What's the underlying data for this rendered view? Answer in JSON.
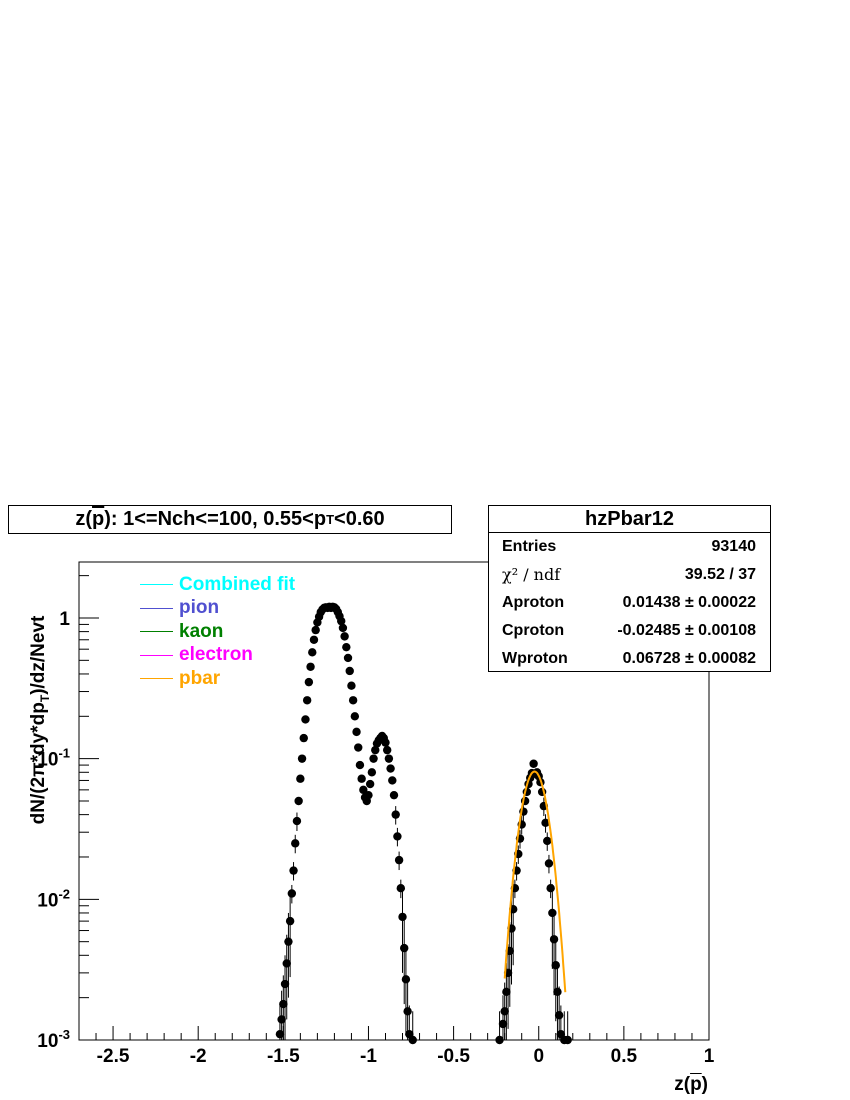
{
  "title": {
    "prefix": "z(",
    "pbar": "p",
    "suffix": "): 1<=Nch<=100, 0.55<p",
    "sub": "T",
    "tail": "<0.60"
  },
  "stats": {
    "name": "hzPbar12",
    "rows": [
      {
        "label": "Entries",
        "value": "93140"
      },
      {
        "label": "χ² / ndf",
        "value": "39.52 / 37"
      },
      {
        "label": "Aproton",
        "value": "0.01438 ± 0.00022"
      },
      {
        "label": "Cproton",
        "value": "-0.02485 ± 0.00108"
      },
      {
        "label": "Wproton",
        "value": "0.06728 ± 0.00082"
      }
    ]
  },
  "axes": {
    "ylabel_a": "dN/(2π*dy*dp",
    "ylabel_sub": "T",
    "ylabel_b": ")/dz/Nevt",
    "xlabel_a": "z(",
    "xlabel_pbar": "p",
    "xlabel_b": ")"
  },
  "legend": [
    {
      "label": "Combined fit",
      "color": "#00ffff"
    },
    {
      "label": "pion",
      "color": "#5050d0"
    },
    {
      "label": "kaon",
      "color": "#008000"
    },
    {
      "label": "electron",
      "color": "#ff00ff"
    },
    {
      "label": "pbar",
      "color": "#ffa500"
    }
  ],
  "chart_data": {
    "type": "scatter",
    "x_range": [
      -2.7,
      1.0
    ],
    "y_range": [
      0.001,
      2.5
    ],
    "y_scale": "log",
    "x_ticks": [
      "-2.5",
      "-2",
      "-1.5",
      "-1",
      "-0.5",
      "0",
      "0.5",
      "1"
    ],
    "y_ticks": [
      {
        "label": "10",
        "exp": "-3",
        "value": 0.001
      },
      {
        "label": "10",
        "exp": "-2",
        "value": 0.01
      },
      {
        "label": "10",
        "exp": "-1",
        "value": 0.1
      },
      {
        "label": "1",
        "exp": "",
        "value": 1
      }
    ],
    "points": [
      [
        -1.52,
        0.0011
      ],
      [
        -1.51,
        0.0014
      ],
      [
        -1.5,
        0.0018
      ],
      [
        -1.49,
        0.0025
      ],
      [
        -1.48,
        0.0035
      ],
      [
        -1.47,
        0.005
      ],
      [
        -1.46,
        0.007
      ],
      [
        -1.45,
        0.011
      ],
      [
        -1.44,
        0.016
      ],
      [
        -1.43,
        0.025
      ],
      [
        -1.42,
        0.036
      ],
      [
        -1.41,
        0.05
      ],
      [
        -1.4,
        0.072
      ],
      [
        -1.39,
        0.1
      ],
      [
        -1.38,
        0.14
      ],
      [
        -1.37,
        0.19
      ],
      [
        -1.36,
        0.26
      ],
      [
        -1.35,
        0.35
      ],
      [
        -1.34,
        0.45
      ],
      [
        -1.33,
        0.57
      ],
      [
        -1.32,
        0.7
      ],
      [
        -1.31,
        0.82
      ],
      [
        -1.3,
        0.93
      ],
      [
        -1.29,
        1.02
      ],
      [
        -1.28,
        1.1
      ],
      [
        -1.27,
        1.15
      ],
      [
        -1.26,
        1.18
      ],
      [
        -1.25,
        1.19
      ],
      [
        -1.24,
        1.18
      ],
      [
        -1.23,
        1.2
      ],
      [
        -1.22,
        1.18
      ],
      [
        -1.21,
        1.2
      ],
      [
        -1.2,
        1.19
      ],
      [
        -1.19,
        1.16
      ],
      [
        -1.18,
        1.1
      ],
      [
        -1.17,
        1.03
      ],
      [
        -1.16,
        0.95
      ],
      [
        -1.15,
        0.85
      ],
      [
        -1.14,
        0.74
      ],
      [
        -1.13,
        0.62
      ],
      [
        -1.12,
        0.52
      ],
      [
        -1.11,
        0.42
      ],
      [
        -1.1,
        0.33
      ],
      [
        -1.09,
        0.26
      ],
      [
        -1.08,
        0.2
      ],
      [
        -1.07,
        0.155
      ],
      [
        -1.06,
        0.12
      ],
      [
        -1.05,
        0.09
      ],
      [
        -1.04,
        0.072
      ],
      [
        -1.03,
        0.06
      ],
      [
        -1.02,
        0.053
      ],
      [
        -1.01,
        0.05
      ],
      [
        -1.0,
        0.055
      ],
      [
        -0.99,
        0.066
      ],
      [
        -0.98,
        0.08
      ],
      [
        -0.97,
        0.1
      ],
      [
        -0.96,
        0.115
      ],
      [
        -0.95,
        0.128
      ],
      [
        -0.94,
        0.135
      ],
      [
        -0.93,
        0.14
      ],
      [
        -0.92,
        0.145
      ],
      [
        -0.91,
        0.14
      ],
      [
        -0.9,
        0.13
      ],
      [
        -0.89,
        0.115
      ],
      [
        -0.88,
        0.1
      ],
      [
        -0.87,
        0.085
      ],
      [
        -0.86,
        0.07
      ],
      [
        -0.85,
        0.055
      ],
      [
        -0.84,
        0.04
      ],
      [
        -0.83,
        0.028
      ],
      [
        -0.82,
        0.019
      ],
      [
        -0.81,
        0.012
      ],
      [
        -0.8,
        0.0075
      ],
      [
        -0.79,
        0.0045
      ],
      [
        -0.78,
        0.0027
      ],
      [
        -0.77,
        0.0016
      ],
      [
        -0.76,
        0.0011
      ],
      [
        -0.74,
        0.001
      ],
      [
        -0.23,
        0.001
      ],
      [
        -0.21,
        0.0013
      ],
      [
        -0.2,
        0.0016
      ],
      [
        -0.19,
        0.0022
      ],
      [
        -0.18,
        0.003
      ],
      [
        -0.17,
        0.0043
      ],
      [
        -0.16,
        0.0062
      ],
      [
        -0.15,
        0.0085
      ],
      [
        -0.14,
        0.012
      ],
      [
        -0.13,
        0.016
      ],
      [
        -0.12,
        0.021
      ],
      [
        -0.11,
        0.027
      ],
      [
        -0.1,
        0.034
      ],
      [
        -0.09,
        0.042
      ],
      [
        -0.08,
        0.05
      ],
      [
        -0.07,
        0.058
      ],
      [
        -0.06,
        0.066
      ],
      [
        -0.05,
        0.073
      ],
      [
        -0.04,
        0.079
      ],
      [
        -0.03,
        0.092
      ],
      [
        -0.02,
        0.078
      ],
      [
        -0.01,
        0.08
      ],
      [
        0.0,
        0.075
      ],
      [
        0.01,
        0.068
      ],
      [
        0.02,
        0.058
      ],
      [
        0.03,
        0.046
      ],
      [
        0.04,
        0.035
      ],
      [
        0.05,
        0.026
      ],
      [
        0.06,
        0.018
      ],
      [
        0.07,
        0.012
      ],
      [
        0.08,
        0.008
      ],
      [
        0.09,
        0.0052
      ],
      [
        0.1,
        0.0034
      ],
      [
        0.11,
        0.0022
      ],
      [
        0.12,
        0.0015
      ],
      [
        0.13,
        0.0011
      ],
      [
        0.15,
        0.001
      ],
      [
        0.17,
        0.001
      ]
    ],
    "fit": {
      "name": "pbar",
      "A": 0.01438,
      "C": -0.02485,
      "W": 0.06728,
      "color": "#ffa500"
    }
  }
}
